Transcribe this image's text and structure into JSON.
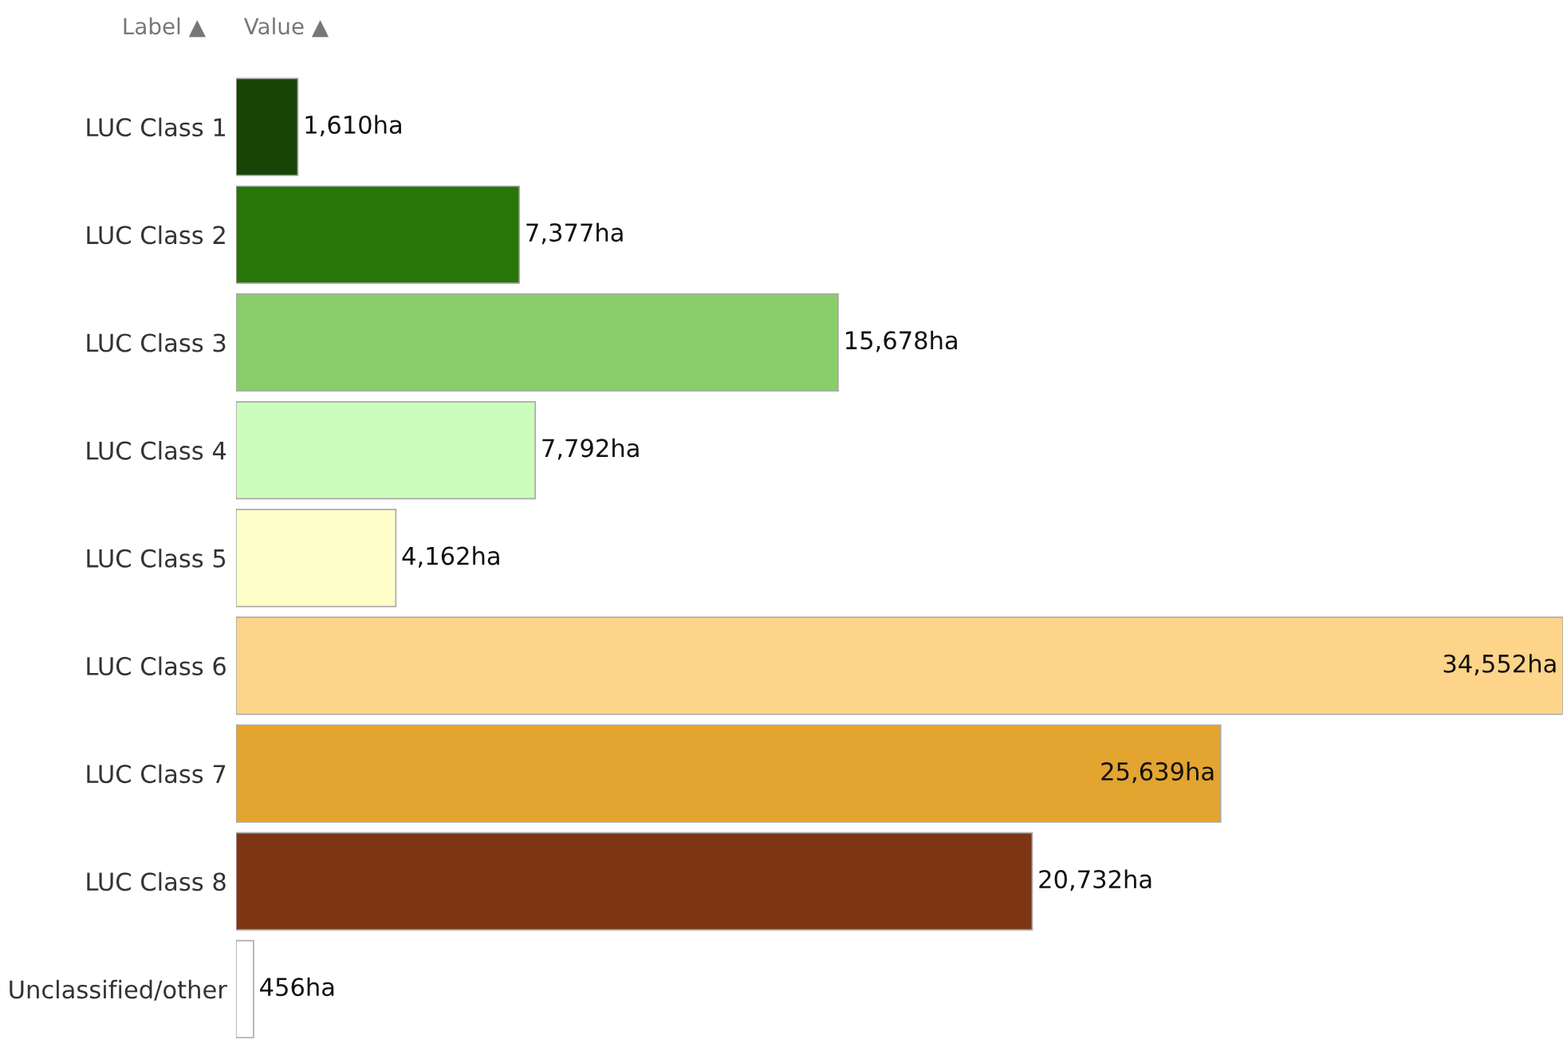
{
  "chart_data": {
    "type": "bar",
    "orientation": "horizontal",
    "categories": [
      "LUC Class 1",
      "LUC Class 2",
      "LUC Class 3",
      "LUC Class 4",
      "LUC Class 5",
      "LUC Class 6",
      "LUC Class 7",
      "LUC Class 8",
      "Unclassified/other"
    ],
    "values": [
      1610,
      7377,
      15678,
      7792,
      4162,
      34552,
      25639,
      20732,
      456
    ],
    "colors": [
      "#174506",
      "#287508",
      "#88cf6a",
      "#cdfdbd",
      "#fefec9",
      "#fdd489",
      "#e3a52f",
      "#7d3513",
      "#ffffff"
    ],
    "value_labels": [
      "1,610ha",
      "7,377ha",
      "15,678ha",
      "7,792ha",
      "4,162ha",
      "34,552ha",
      "25,639ha",
      "20,732ha",
      "456ha"
    ],
    "annotations": [
      "Label ▲",
      "Value ▲"
    ],
    "grid": false,
    "legend": false
  }
}
